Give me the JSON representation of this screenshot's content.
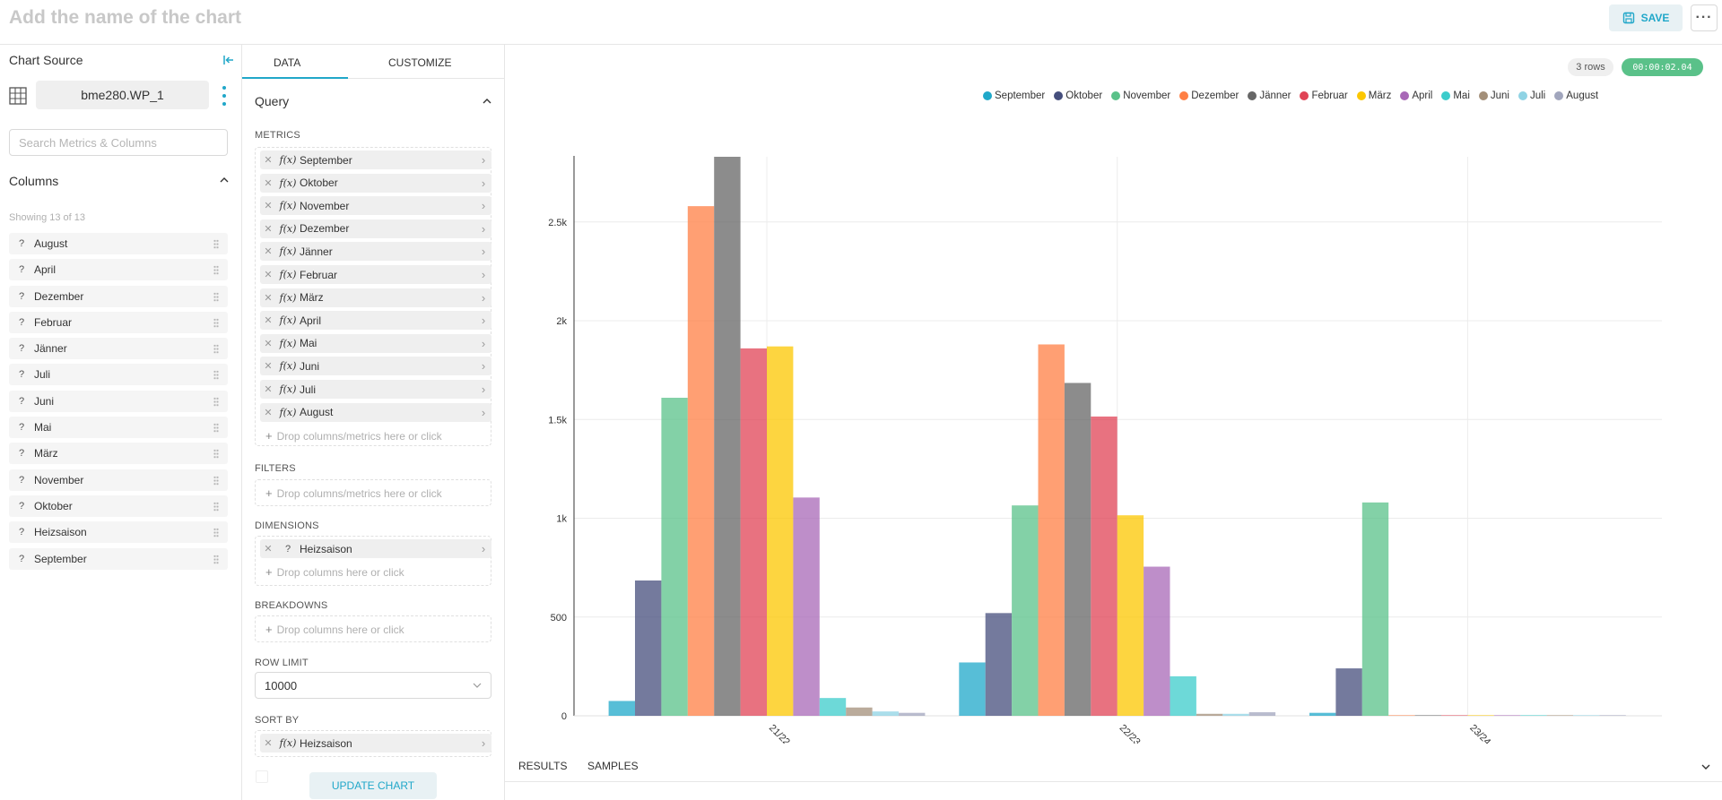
{
  "header": {
    "chart_name_placeholder": "Add the name of the chart",
    "save_label": "SAVE",
    "more_label": "···"
  },
  "source": {
    "title": "Chart Source",
    "dataset": "bme280.WP_1",
    "search_placeholder": "Search Metrics & Columns",
    "columns_title": "Columns",
    "showing": "Showing 13 of 13",
    "columns": [
      "August",
      "April",
      "Dezember",
      "Februar",
      "Jänner",
      "Juli",
      "Juni",
      "Mai",
      "März",
      "November",
      "Oktober",
      "Heizsaison",
      "September"
    ]
  },
  "data_panel": {
    "tabs": {
      "data": "DATA",
      "customize": "CUSTOMIZE"
    },
    "query_title": "Query",
    "metrics_label": "METRICS",
    "metrics": [
      "September",
      "Oktober",
      "November",
      "Dezember",
      "Jänner",
      "Februar",
      "März",
      "April",
      "Mai",
      "Juni",
      "Juli",
      "August"
    ],
    "fx_label": "f(x)",
    "q_label": "?",
    "metrics_hint": "Drop columns/metrics here or click",
    "filters_label": "FILTERS",
    "filters_hint": "Drop columns/metrics here or click",
    "dimensions_label": "DIMENSIONS",
    "dimension": "Heizsaison",
    "dimensions_hint": "Drop columns here or click",
    "breakdowns_label": "BREAKDOWNS",
    "breakdowns_hint": "Drop columns here or click",
    "row_limit_label": "ROW LIMIT",
    "row_limit": "10000",
    "sort_by_label": "SORT BY",
    "sort_by": "Heizsaison",
    "update_label": "UPDATE CHART"
  },
  "chart_header": {
    "rows": "3 rows",
    "timer": "00:00:02.04"
  },
  "bottom_tabs": {
    "results": "RESULTS",
    "samples": "SAMPLES"
  },
  "colors": {
    "accent": "#20a7c9",
    "success": "#5ac189"
  },
  "chart_data": {
    "type": "bar",
    "categories": [
      "21/22",
      "22/23",
      "23/24"
    ],
    "yticks": [
      0,
      500,
      1000,
      1500,
      2000,
      2500
    ],
    "ytick_labels": [
      "0",
      "500",
      "1k",
      "1.5k",
      "2k",
      "2.5k"
    ],
    "ylim": [
      0,
      2830
    ],
    "grid": true,
    "legend_position": "top-right",
    "series": [
      {
        "name": "September",
        "color": "#1FA8C9",
        "values": [
          75,
          270,
          15
        ]
      },
      {
        "name": "Oktober",
        "color": "#454E7C",
        "values": [
          685,
          520,
          240
        ]
      },
      {
        "name": "November",
        "color": "#5AC189",
        "values": [
          1610,
          1065,
          1080
        ]
      },
      {
        "name": "Dezember",
        "color": "#FF7F44",
        "values": [
          2580,
          1880,
          3
        ]
      },
      {
        "name": "Jänner",
        "color": "#666666",
        "values": [
          2830,
          1685,
          3
        ]
      },
      {
        "name": "Februar",
        "color": "#E04355",
        "values": [
          1860,
          1515,
          3
        ]
      },
      {
        "name": "März",
        "color": "#FCC700",
        "values": [
          1870,
          1015,
          3
        ]
      },
      {
        "name": "April",
        "color": "#A868B7",
        "values": [
          1105,
          755,
          3
        ]
      },
      {
        "name": "Mai",
        "color": "#3CCCCB",
        "values": [
          90,
          200,
          3
        ]
      },
      {
        "name": "Juni",
        "color": "#A38F79",
        "values": [
          42,
          10,
          3
        ]
      },
      {
        "name": "Juli",
        "color": "#8FD3E4",
        "values": [
          22,
          10,
          3
        ]
      },
      {
        "name": "August",
        "color": "#A1A6BD",
        "values": [
          15,
          18,
          3
        ]
      }
    ]
  }
}
